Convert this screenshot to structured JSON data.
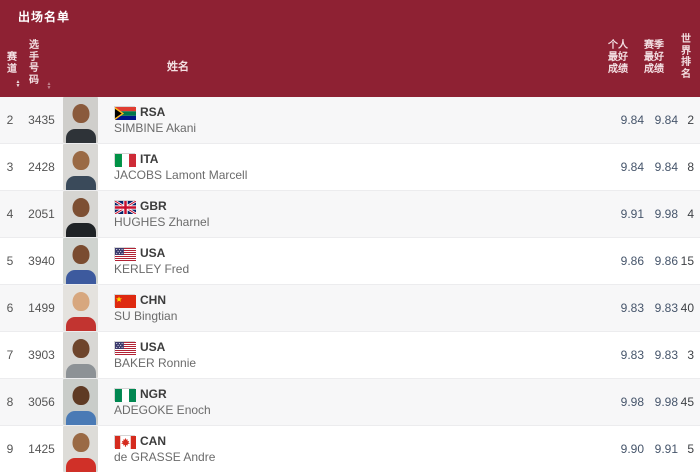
{
  "page": {
    "title": "出场名单"
  },
  "colors": {
    "header_bg": "#8E2133",
    "header_text": "#F3DFE2",
    "row_alt_bg": "#F7F7F8",
    "result_value_text": "#46556B"
  },
  "table": {
    "headers": {
      "lane": "赛道",
      "bib": "选手号码",
      "name": "姓名",
      "personal_best": "个人最好成绩",
      "season_best": "赛季最好成绩",
      "world_rank": "世界排名"
    },
    "rows": [
      {
        "lane": "2",
        "bib": "3435",
        "noc": "RSA",
        "name": "SIMBINE Akani",
        "pb": "9.84",
        "sb": "9.84",
        "world_rank": "2",
        "photo": {
          "bg": "#cfcecb",
          "skin": "#8a5a3c",
          "shirt": "#2e3338"
        }
      },
      {
        "lane": "3",
        "bib": "2428",
        "noc": "ITA",
        "name": "JACOBS Lamont Marcell",
        "pb": "9.84",
        "sb": "9.84",
        "world_rank": "8",
        "photo": {
          "bg": "#d9d8d5",
          "skin": "#9a6a45",
          "shirt": "#3a4a5a"
        }
      },
      {
        "lane": "4",
        "bib": "2051",
        "noc": "GBR",
        "name": "HUGHES Zharnel",
        "pb": "9.91",
        "sb": "9.98",
        "world_rank": "4",
        "photo": {
          "bg": "#d6d5d2",
          "skin": "#7d4f33",
          "shirt": "#1f2326"
        }
      },
      {
        "lane": "5",
        "bib": "3940",
        "noc": "USA",
        "name": "KERLEY Fred",
        "pb": "9.86",
        "sb": "9.86",
        "world_rank": "15",
        "photo": {
          "bg": "#cfd3cf",
          "skin": "#7a4c30",
          "shirt": "#3d5a9e"
        }
      },
      {
        "lane": "6",
        "bib": "1499",
        "noc": "CHN",
        "name": "SU Bingtian",
        "pb": "9.83",
        "sb": "9.83",
        "world_rank": "40",
        "photo": {
          "bg": "#e4e2de",
          "skin": "#d7a77e",
          "shirt": "#c23430"
        }
      },
      {
        "lane": "7",
        "bib": "3903",
        "noc": "USA",
        "name": "BAKER Ronnie",
        "pb": "9.83",
        "sb": "9.83",
        "world_rank": "3",
        "photo": {
          "bg": "#d8d7d4",
          "skin": "#6e452c",
          "shirt": "#8d9296"
        }
      },
      {
        "lane": "8",
        "bib": "3056",
        "noc": "NGR",
        "name": "ADEGOKE Enoch",
        "pb": "9.98",
        "sb": "9.98",
        "world_rank": "45",
        "photo": {
          "bg": "#c9ccc9",
          "skin": "#5f3a24",
          "shirt": "#4a7ab5"
        }
      },
      {
        "lane": "9",
        "bib": "1425",
        "noc": "CAN",
        "name": "de GRASSE Andre",
        "pb": "9.90",
        "sb": "9.91",
        "world_rank": "5",
        "photo": {
          "bg": "#dddcd8",
          "skin": "#9a6a45",
          "shirt": "#d03028"
        }
      }
    ]
  },
  "icons": {
    "sort": "sort-arrows"
  }
}
